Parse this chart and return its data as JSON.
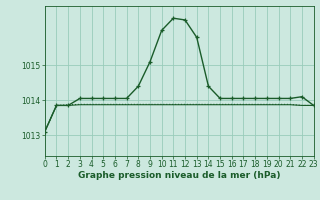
{
  "title": "Graphe pression niveau de la mer (hPa)",
  "bg_color": "#cce8df",
  "grid_color": "#99ccbb",
  "line_color": "#1a5c2a",
  "xlim": [
    0,
    23
  ],
  "ylim": [
    1012.4,
    1016.7
  ],
  "yticks": [
    1013,
    1014,
    1015
  ],
  "xticks": [
    0,
    1,
    2,
    3,
    4,
    5,
    6,
    7,
    8,
    9,
    10,
    11,
    12,
    13,
    14,
    15,
    16,
    17,
    18,
    19,
    20,
    21,
    22,
    23
  ],
  "hours": [
    0,
    1,
    2,
    3,
    4,
    5,
    6,
    7,
    8,
    9,
    10,
    11,
    12,
    13,
    14,
    15,
    16,
    17,
    18,
    19,
    20,
    21,
    22,
    23
  ],
  "series_main": [
    1013.1,
    1013.85,
    1013.85,
    1014.05,
    1014.05,
    1014.05,
    1014.05,
    1014.05,
    1014.4,
    1015.1,
    1016.0,
    1016.35,
    1016.3,
    1015.8,
    1014.4,
    1014.05,
    1014.05,
    1014.05,
    1014.05,
    1014.05,
    1014.05,
    1014.05,
    1014.1,
    1013.85
  ],
  "series_flat1": [
    1013.1,
    1013.85,
    1013.87,
    1013.88,
    1013.88,
    1013.88,
    1013.88,
    1013.88,
    1013.88,
    1013.88,
    1013.88,
    1013.88,
    1013.88,
    1013.88,
    1013.88,
    1013.88,
    1013.88,
    1013.88,
    1013.88,
    1013.88,
    1013.88,
    1013.88,
    1013.85,
    1013.85
  ],
  "series_flat2": [
    1013.1,
    1013.85,
    1013.85,
    1013.87,
    1013.87,
    1013.87,
    1013.87,
    1013.87,
    1013.87,
    1013.87,
    1013.87,
    1013.87,
    1013.87,
    1013.87,
    1013.87,
    1013.87,
    1013.87,
    1013.87,
    1013.87,
    1013.87,
    1013.87,
    1013.87,
    1013.85,
    1013.85
  ],
  "tick_fontsize": 5.5,
  "xlabel_fontsize": 6.5
}
